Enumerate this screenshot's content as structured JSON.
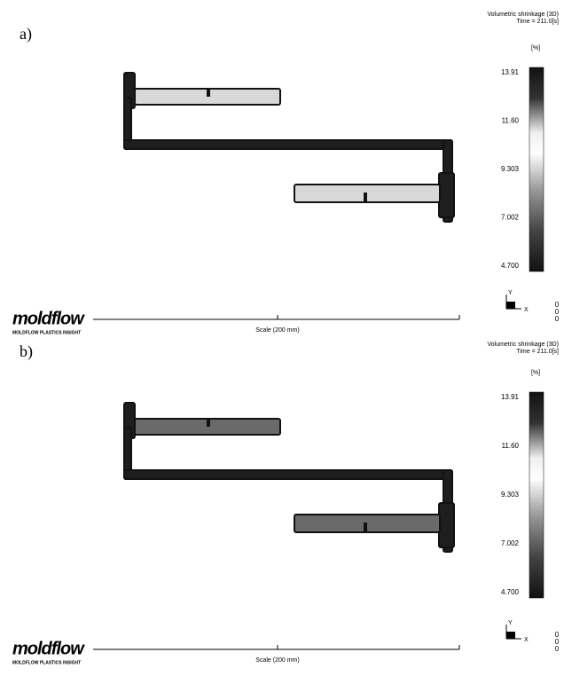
{
  "panels": [
    {
      "label": "a)",
      "title": "Volumetric shrinkage (3D)",
      "time": "Time = 211.0[s]",
      "unit": "[%]",
      "scale_ticks": [
        "13.91",
        "11.60",
        "9.303",
        "7.002",
        "4.700"
      ],
      "axis_y": "Y",
      "axis_x": "X",
      "axis_values": [
        "0",
        "0",
        "0"
      ],
      "scale": "Scale (200 mm)",
      "logo": "moldflow",
      "logo_sub": "MOLDFLOW PLASTICS INSIGHT"
    },
    {
      "label": "b)",
      "title": "Volumetric shrinkage (3D)",
      "time": "Time = 211.0[s]",
      "unit": "[%]",
      "scale_ticks": [
        "13.91",
        "11.60",
        "9.303",
        "7.002",
        "4.700"
      ],
      "axis_y": "Y",
      "axis_x": "X",
      "axis_values": [
        "0",
        "0",
        "0"
      ],
      "scale": "Scale (200 mm)",
      "logo": "moldflow",
      "logo_sub": "MOLDFLOW PLASTICS INSIGHT"
    }
  ]
}
